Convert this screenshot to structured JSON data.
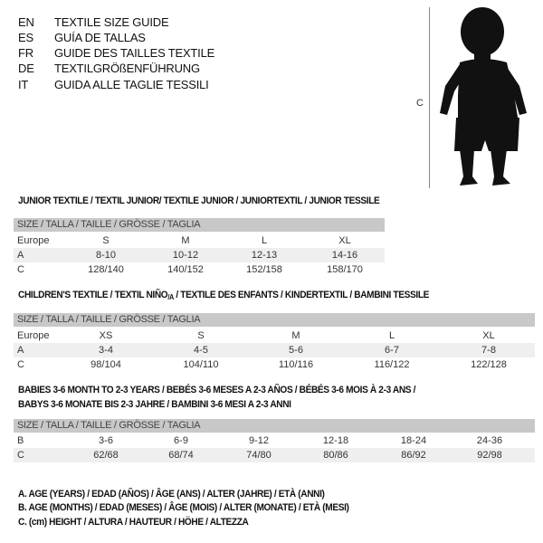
{
  "languages": [
    {
      "code": "EN",
      "title": "TEXTILE SIZE GUIDE"
    },
    {
      "code": "ES",
      "title": "GUÍA DE TALLAS"
    },
    {
      "code": "FR",
      "title": "GUIDE DES TAILLES TEXTILE"
    },
    {
      "code": "DE",
      "title": "TEXTILGRÖßENFÜHRUNG"
    },
    {
      "code": "IT",
      "title": "GUIDA ALLE TAGLIE TESSILI"
    }
  ],
  "figure": {
    "label": "C"
  },
  "junior": {
    "title": "JUNIOR TEXTILE / TEXTIL JUNIOR/ TEXTILE JUNIOR / JUNIORTEXTIL / JUNIOR TESSILE",
    "header": "SIZE / TALLA / TAILLE / GRÖSSE / TAGLIA",
    "rows": [
      {
        "label": "Europe",
        "values": [
          "S",
          "M",
          "L",
          "XL"
        ]
      },
      {
        "label": "A",
        "values": [
          "8-10",
          "10-12",
          "12-13",
          "14-16"
        ]
      },
      {
        "label": "C",
        "values": [
          "128/140",
          "140/152",
          "152/158",
          "158/170"
        ]
      }
    ]
  },
  "children": {
    "title_main": "CHILDREN'S TEXTILE / TEXTIL NIÑO",
    "title_sub": "/A",
    "title_rest": " / TEXTILE DES ENFANTS / KINDERTEXTIL / BAMBINI TESSILE",
    "header": "SIZE / TALLA / TAILLE / GRÖSSE / TAGLIA",
    "rows": [
      {
        "label": "Europe",
        "values": [
          "XS",
          "S",
          "M",
          "L",
          "XL"
        ]
      },
      {
        "label": "A",
        "values": [
          "3-4",
          "4-5",
          "5-6",
          "6-7",
          "7-8"
        ]
      },
      {
        "label": "C",
        "values": [
          "98/104",
          "104/110",
          "110/116",
          "116/122",
          "122/128"
        ]
      }
    ]
  },
  "babies": {
    "title_line1": "BABIES 3-6 MONTH TO 2-3 YEARS / BEBÉS 3-6 MESES A 2-3 AÑOS / BÉBÉS 3-6 MOIS À 2-3 ANS /",
    "title_line2": "BABYS 3-6 MONATE BIS 2-3 JAHRE / BAMBINI 3-6 MESI A 2-3 ANNI",
    "header": "SIZE / TALLA / TAILLE / GRÖSSE / TAGLIA",
    "rows": [
      {
        "label": "B",
        "values": [
          "3-6",
          "6-9",
          "9-12",
          "12-18",
          "18-24",
          "24-36"
        ]
      },
      {
        "label": "C",
        "values": [
          "62/68",
          "68/74",
          "74/80",
          "80/86",
          "86/92",
          "92/98"
        ]
      }
    ]
  },
  "legend": [
    "A. AGE (YEARS) / EDAD (AÑOS) / ÂGE (ANS) / ALTER (JAHRE) / ETÀ (ANNI)",
    "B. AGE (MONTHS) / EDAD (MESES) / ÂGE (MOIS) / ALTER (MONATE) / ETÀ (MESI)",
    "C. (cm) HEIGHT / ALTURA / HAUTEUR / HÖHE / ALTEZZA"
  ]
}
